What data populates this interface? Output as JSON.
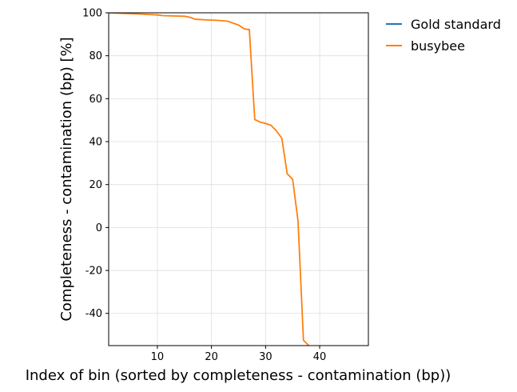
{
  "chart_data": {
    "type": "line",
    "xlabel": "Index of bin (sorted by completeness - contamination (bp))",
    "ylabel": "Completeness - contamination (bp) [%]",
    "xlim": [
      1,
      49
    ],
    "ylim": [
      -55,
      100
    ],
    "xticks": [
      10,
      20,
      30,
      40
    ],
    "yticks": [
      100,
      80,
      60,
      40,
      20,
      0,
      -20,
      -40
    ],
    "grid": true,
    "legend_position": "outside-top-right",
    "series": [
      {
        "name": "Gold standard",
        "color": "#1f77b4",
        "x": [],
        "y": []
      },
      {
        "name": "busybee",
        "color": "#ff7f0e",
        "x": [
          1,
          4,
          7,
          10,
          11,
          12,
          15,
          16,
          17,
          19,
          21,
          23,
          25,
          26,
          26.5,
          27,
          28,
          29,
          30,
          31,
          32,
          33,
          34,
          35,
          36,
          37,
          38
        ],
        "y": [
          100,
          99.7,
          99.4,
          99.0,
          98.7,
          98.6,
          98.4,
          97.9,
          97.0,
          96.7,
          96.5,
          96.1,
          94.3,
          92.6,
          92.3,
          92.2,
          50.3,
          49.1,
          48.5,
          47.6,
          45.0,
          41.6,
          25.0,
          22.5,
          3.0,
          -52.5,
          -55
        ]
      }
    ]
  }
}
